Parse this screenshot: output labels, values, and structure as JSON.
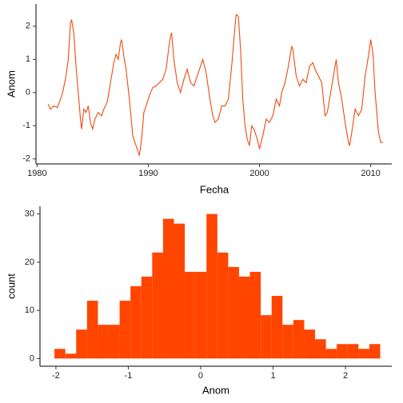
{
  "chart_data": [
    {
      "type": "line",
      "xlabel": "Fecha",
      "ylabel": "Anom",
      "color": "#ee4a10",
      "x": [
        1981.0,
        1981.2,
        1981.5,
        1981.8,
        1982.0,
        1982.3,
        1982.6,
        1982.8,
        1983.0,
        1983.1,
        1983.3,
        1983.5,
        1983.7,
        1983.9,
        1984.0,
        1984.2,
        1984.4,
        1984.6,
        1984.8,
        1985.0,
        1985.2,
        1985.5,
        1985.8,
        1986.0,
        1986.3,
        1986.6,
        1986.9,
        1987.1,
        1987.3,
        1987.5,
        1987.6,
        1987.8,
        1988.0,
        1988.3,
        1988.6,
        1988.8,
        1989.0,
        1989.2,
        1989.4,
        1989.6,
        1989.9,
        1990.2,
        1990.4,
        1990.7,
        1991.0,
        1991.3,
        1991.6,
        1991.9,
        1992.0,
        1992.1,
        1992.3,
        1992.6,
        1992.9,
        1993.2,
        1993.5,
        1993.8,
        1994.1,
        1994.4,
        1994.7,
        1994.9,
        1995.2,
        1995.5,
        1995.8,
        1996.0,
        1996.3,
        1996.6,
        1996.9,
        1997.2,
        1997.5,
        1997.8,
        1997.9,
        1998.1,
        1998.3,
        1998.5,
        1998.7,
        1998.9,
        1999.1,
        1999.3,
        1999.5,
        1999.8,
        2000.0,
        2000.3,
        2000.6,
        2000.9,
        2001.2,
        2001.5,
        2001.8,
        2002.0,
        2002.3,
        2002.6,
        2002.9,
        2003.0,
        2003.3,
        2003.6,
        2003.9,
        2004.2,
        2004.5,
        2004.8,
        2005.0,
        2005.3,
        2005.6,
        2005.9,
        2006.1,
        2006.4,
        2006.7,
        2006.9,
        2007.1,
        2007.4,
        2007.7,
        2008.0,
        2008.1,
        2008.3,
        2008.6,
        2008.9,
        2009.2,
        2009.5,
        2009.8,
        2010.0,
        2010.2,
        2010.4,
        2010.7,
        2010.9,
        2011.1
      ],
      "values": [
        -0.35,
        -0.5,
        -0.4,
        -0.45,
        -0.3,
        0.0,
        0.5,
        1.0,
        2.1,
        2.2,
        1.8,
        0.8,
        0.0,
        -0.8,
        -1.1,
        -0.5,
        -0.6,
        -0.4,
        -0.9,
        -1.1,
        -0.8,
        -0.6,
        -0.7,
        -0.5,
        -0.3,
        0.3,
        0.9,
        1.15,
        1.0,
        1.5,
        1.6,
        1.1,
        0.7,
        -0.2,
        -1.3,
        -1.5,
        -1.7,
        -1.9,
        -1.4,
        -0.6,
        -0.3,
        0.0,
        0.15,
        0.2,
        0.3,
        0.4,
        0.7,
        1.5,
        1.7,
        1.8,
        1.0,
        0.3,
        0.0,
        0.4,
        0.7,
        0.3,
        0.2,
        0.5,
        0.8,
        1.0,
        0.6,
        -0.1,
        -0.7,
        -0.9,
        -0.8,
        -0.4,
        -0.4,
        -0.2,
        0.8,
        2.0,
        2.35,
        2.3,
        1.3,
        -0.2,
        -1.0,
        -1.4,
        -1.6,
        -1.0,
        -1.1,
        -1.4,
        -1.7,
        -1.3,
        -0.8,
        -0.9,
        -0.7,
        -0.2,
        -0.4,
        0.0,
        0.3,
        0.8,
        1.4,
        1.3,
        0.5,
        0.2,
        0.4,
        0.3,
        0.8,
        0.9,
        0.7,
        0.5,
        0.3,
        -0.7,
        -0.6,
        0.0,
        0.6,
        1.0,
        0.3,
        -0.2,
        -0.9,
        -1.5,
        -1.6,
        -1.2,
        -0.5,
        -0.7,
        -0.5,
        0.5,
        1.1,
        1.6,
        1.2,
        0.0,
        -1.2,
        -1.5,
        -1.5
      ],
      "xlim": [
        1979.9,
        2011.9
      ],
      "xticks": [
        1980,
        1990,
        2000,
        2010
      ],
      "ylim": [
        -2.15,
        2.67
      ],
      "yticks": [
        -2,
        -1,
        0,
        1,
        2
      ]
    },
    {
      "type": "histogram",
      "xlabel": "Anom",
      "ylabel": "count",
      "color": "#ff4500",
      "bins": [
        -2.02,
        -1.87,
        -1.72,
        -1.57,
        -1.42,
        -1.27,
        -1.12,
        -0.97,
        -0.82,
        -0.67,
        -0.52,
        -0.37,
        -0.22,
        -0.07,
        0.08,
        0.23,
        0.38,
        0.53,
        0.68,
        0.83,
        0.98,
        1.13,
        1.28,
        1.43,
        1.58,
        1.73,
        1.88,
        2.03,
        2.18,
        2.33,
        2.48
      ],
      "counts": [
        2,
        1,
        6,
        12,
        7,
        7,
        12,
        15,
        17,
        22,
        29,
        28,
        18,
        18,
        30,
        22,
        19,
        17,
        18,
        9,
        13,
        7,
        8,
        6,
        4,
        2,
        3,
        3,
        2,
        3
      ],
      "xlim": [
        -2.22,
        2.64
      ],
      "xticks": [
        -2,
        -1,
        0,
        1,
        2
      ],
      "ylim": [
        -1.6,
        31.6
      ],
      "yticks": [
        0,
        10,
        20,
        30
      ]
    }
  ]
}
